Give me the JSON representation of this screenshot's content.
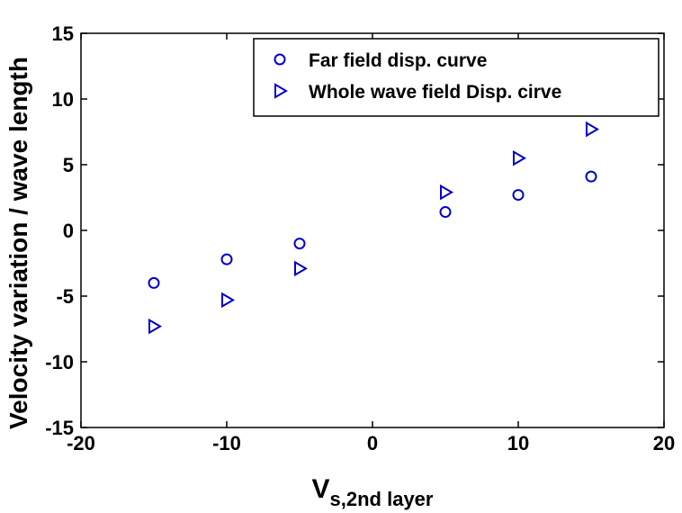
{
  "chart_data": {
    "type": "scatter",
    "title": "",
    "xlabel_main": "V",
    "xlabel_sub": "s,2nd layer",
    "ylabel": "Velocity variation / wave length",
    "xlim": [
      -20,
      20
    ],
    "ylim": [
      -15,
      15
    ],
    "xticks": [
      -20,
      -10,
      0,
      10,
      20
    ],
    "yticks": [
      -15,
      -10,
      -5,
      0,
      5,
      10,
      15
    ],
    "grid": false,
    "legend_position": "top-right",
    "series": [
      {
        "name": "Far field disp. curve",
        "marker": "circle",
        "color": "#0000cc",
        "x": [
          -15,
          -10,
          -5,
          5,
          10,
          15
        ],
        "y": [
          -4.0,
          -2.2,
          -1.0,
          1.4,
          2.7,
          4.1
        ]
      },
      {
        "name": "Whole wave field Disp. cirve",
        "marker": "triangle-right",
        "color": "#0000cc",
        "x": [
          -15,
          -10,
          -5,
          5,
          10,
          15
        ],
        "y": [
          -7.3,
          -5.3,
          -2.9,
          2.9,
          5.5,
          7.7
        ]
      }
    ]
  }
}
